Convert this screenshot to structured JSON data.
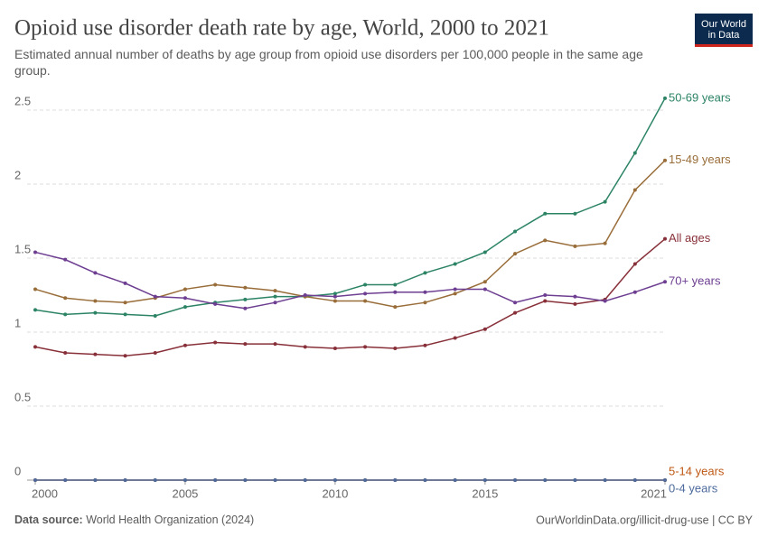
{
  "chart_data": {
    "type": "line",
    "title": "Opioid use disorder death rate by age, World, 2000 to 2021",
    "subtitle": "Estimated annual number of deaths by age group from opioid use disorders per 100,000 people in the same age group.",
    "logo": [
      "Our World",
      "in Data"
    ],
    "source_label": "Data source:",
    "source": "World Health Organization (2024)",
    "url_license": "OurWorldinData.org/illicit-drug-use | CC BY",
    "x": [
      2000,
      2001,
      2002,
      2003,
      2004,
      2005,
      2006,
      2007,
      2008,
      2009,
      2010,
      2011,
      2012,
      2013,
      2014,
      2015,
      2016,
      2017,
      2018,
      2019,
      2020,
      2021
    ],
    "xlim": [
      2000,
      2021
    ],
    "xticks": [
      2000,
      2005,
      2010,
      2015,
      2021
    ],
    "ylim": [
      0,
      2.6
    ],
    "yticks": [
      0,
      0.5,
      1,
      1.5,
      2,
      2.5
    ],
    "grid": true,
    "series": [
      {
        "name": "50-69 years",
        "color": "#2c8465",
        "values": [
          1.15,
          1.12,
          1.13,
          1.12,
          1.11,
          1.17,
          1.2,
          1.22,
          1.24,
          1.24,
          1.26,
          1.32,
          1.32,
          1.4,
          1.46,
          1.54,
          1.68,
          1.8,
          1.8,
          1.88,
          2.21,
          2.58
        ]
      },
      {
        "name": "15-49 years",
        "color": "#996d39",
        "values": [
          1.29,
          1.23,
          1.21,
          1.2,
          1.23,
          1.29,
          1.32,
          1.3,
          1.28,
          1.24,
          1.21,
          1.21,
          1.17,
          1.2,
          1.26,
          1.34,
          1.53,
          1.62,
          1.58,
          1.6,
          1.96,
          2.16
        ]
      },
      {
        "name": "All ages",
        "color": "#883039",
        "values": [
          0.9,
          0.86,
          0.85,
          0.84,
          0.86,
          0.91,
          0.93,
          0.92,
          0.92,
          0.9,
          0.89,
          0.9,
          0.89,
          0.91,
          0.96,
          1.02,
          1.13,
          1.21,
          1.19,
          1.22,
          1.46,
          1.63
        ]
      },
      {
        "name": "70+ years",
        "color": "#6d3e91",
        "values": [
          1.54,
          1.49,
          1.4,
          1.33,
          1.24,
          1.23,
          1.19,
          1.16,
          1.2,
          1.25,
          1.24,
          1.26,
          1.27,
          1.27,
          1.29,
          1.29,
          1.2,
          1.25,
          1.24,
          1.21,
          1.27,
          1.34
        ]
      },
      {
        "name": "5-14 years",
        "color": "#be5915",
        "values": [
          0,
          0,
          0,
          0,
          0,
          0,
          0,
          0,
          0,
          0,
          0,
          0,
          0,
          0,
          0,
          0,
          0,
          0,
          0,
          0,
          0,
          0
        ]
      },
      {
        "name": "0-4 years",
        "color": "#4c6a9c",
        "values": [
          0,
          0,
          0,
          0,
          0,
          0,
          0,
          0,
          0,
          0,
          0,
          0,
          0,
          0,
          0,
          0,
          0,
          0,
          0,
          0,
          0,
          0
        ]
      }
    ]
  }
}
